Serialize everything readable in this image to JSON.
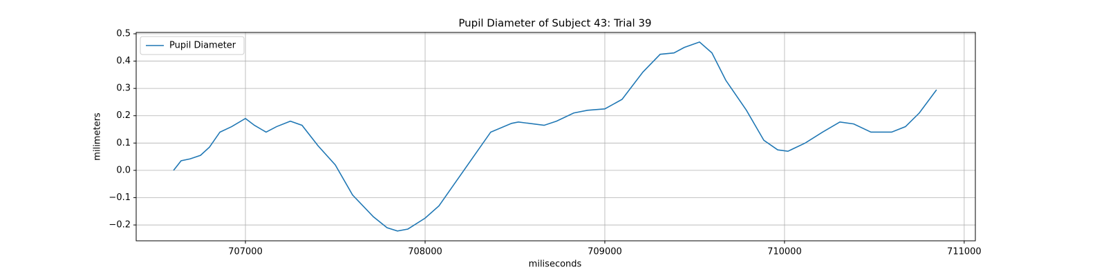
{
  "chart_data": {
    "type": "line",
    "title": "Pupil Diameter of Subject 43: Trial 39",
    "x_label": "miliseconds",
    "y_label": "milimeters",
    "x": [
      706600,
      706642,
      706692,
      706750,
      706800,
      706858,
      706923,
      707000,
      707050,
      707115,
      707173,
      707250,
      707315,
      707404,
      707500,
      707596,
      707712,
      707788,
      707846,
      707904,
      708000,
      708077,
      708173,
      708269,
      708365,
      708481,
      708519,
      708662,
      708731,
      708827,
      708904,
      709000,
      709096,
      709212,
      709308,
      709385,
      709442,
      709527,
      709596,
      709673,
      709788,
      709885,
      709962,
      710019,
      710115,
      710212,
      710308,
      710385,
      710481,
      710596,
      710673,
      710750,
      710846
    ],
    "series": [
      {
        "name": "Pupil Diameter",
        "color": "#1f77b4",
        "values": [
          0.0,
          0.035,
          0.042,
          0.055,
          0.085,
          0.14,
          0.16,
          0.19,
          0.165,
          0.14,
          0.16,
          0.18,
          0.165,
          0.09,
          0.02,
          -0.09,
          -0.17,
          -0.21,
          -0.222,
          -0.215,
          -0.175,
          -0.13,
          -0.04,
          0.05,
          0.14,
          0.172,
          0.177,
          0.165,
          0.18,
          0.21,
          0.22,
          0.225,
          0.26,
          0.36,
          0.425,
          0.43,
          0.45,
          0.47,
          0.43,
          0.33,
          0.22,
          0.11,
          0.075,
          0.07,
          0.1,
          0.14,
          0.177,
          0.17,
          0.14,
          0.14,
          0.16,
          0.21,
          0.295
        ]
      }
    ],
    "xlim": [
      706392,
      711062
    ],
    "ylim": [
      -0.258,
      0.505
    ],
    "xticks": [
      707000,
      708000,
      709000,
      710000,
      711000
    ],
    "yticks": [
      {
        "value": -0.2,
        "label": "−0.2"
      },
      {
        "value": -0.1,
        "label": "−0.1"
      },
      {
        "value": 0.0,
        "label": "0.0"
      },
      0.1,
      0.2,
      0.3,
      0.4,
      0.5
    ],
    "grid": true,
    "legend": "upper-left"
  }
}
